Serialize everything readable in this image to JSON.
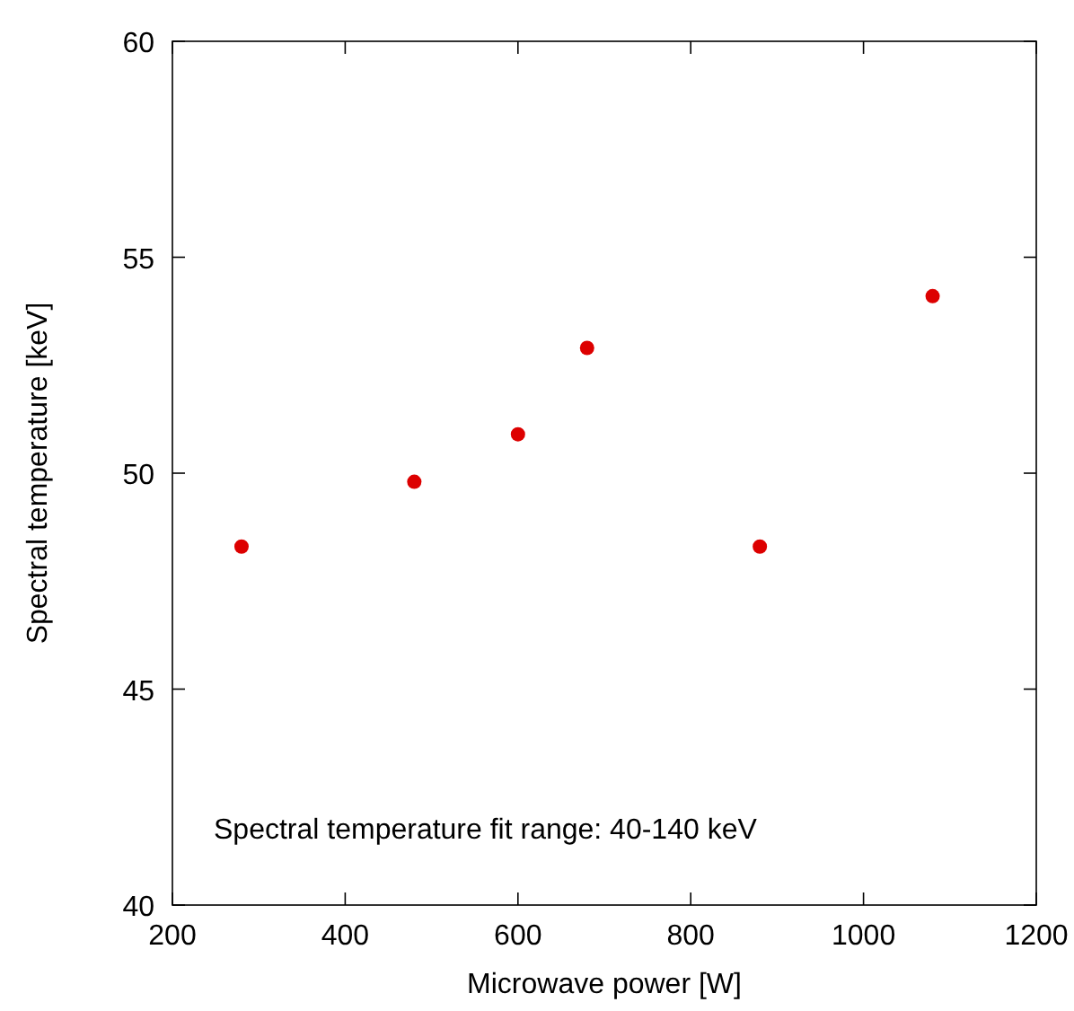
{
  "chart_data": {
    "type": "scatter",
    "xlabel": "Microwave power [W]",
    "ylabel": "Spectral temperature [keV]",
    "x": [
      280,
      480,
      600,
      680,
      880,
      1080
    ],
    "series": [
      {
        "color": "#dd0000",
        "values": [
          48.3,
          49.8,
          50.9,
          52.9,
          48.3,
          54.1
        ]
      }
    ],
    "xlim": [
      200,
      1200
    ],
    "xticks": [
      200,
      400,
      600,
      800,
      1000,
      1200
    ],
    "ylim": [
      40,
      60
    ],
    "yticks": [
      40,
      45,
      50,
      55,
      60
    ],
    "marker": "circle",
    "grid": false,
    "annotations": [
      "Spectral temperature fit range: 40-140 keV"
    ]
  }
}
